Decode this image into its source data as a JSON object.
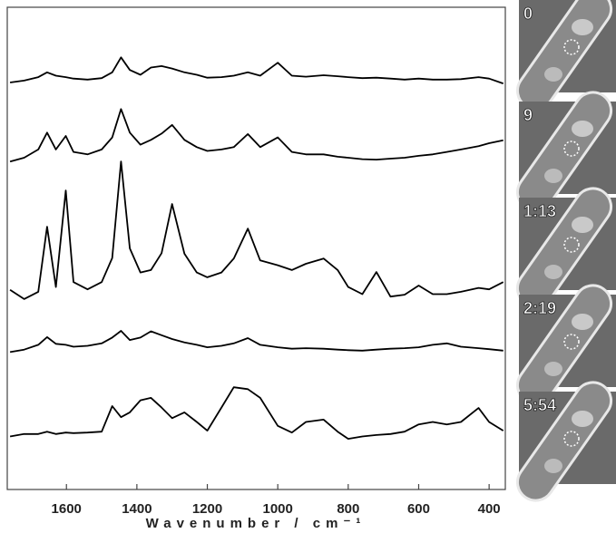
{
  "chart_data": {
    "type": "line",
    "x_label": "Wavenumber / cm⁻¹",
    "xlim": [
      1768,
      354
    ],
    "xticks": [
      1600,
      1400,
      1200,
      1000,
      800,
      600,
      400
    ],
    "ylim": [
      0,
      100
    ],
    "x": [
      1760,
      1720,
      1680,
      1655,
      1630,
      1602,
      1580,
      1540,
      1500,
      1470,
      1445,
      1420,
      1390,
      1360,
      1330,
      1300,
      1265,
      1230,
      1200,
      1160,
      1125,
      1085,
      1050,
      1000,
      960,
      920,
      870,
      830,
      800,
      760,
      720,
      680,
      640,
      600,
      560,
      520,
      480,
      430,
      400,
      360
    ],
    "series": [
      {
        "color": "#000000",
        "values": [
          84.4,
          84.8,
          85.5,
          86.5,
          85.8,
          85.5,
          85.2,
          85.0,
          85.3,
          86.5,
          89.6,
          87.0,
          86.0,
          87.5,
          87.8,
          87.3,
          86.5,
          86.0,
          85.4,
          85.5,
          85.8,
          86.5,
          85.8,
          88.5,
          85.8,
          85.6,
          85.9,
          85.7,
          85.5,
          85.3,
          85.4,
          85.2,
          85.0,
          85.2,
          85.0,
          85.0,
          85.1,
          85.5,
          85.2,
          84.2
        ]
      },
      {
        "color": "#000000",
        "values": [
          68.0,
          68.8,
          70.5,
          74.0,
          70.5,
          73.3,
          70.0,
          69.5,
          70.5,
          73.0,
          78.9,
          74.0,
          71.5,
          72.5,
          73.8,
          75.6,
          72.5,
          71.0,
          70.2,
          70.5,
          71.0,
          73.7,
          71.0,
          73.0,
          70.0,
          69.5,
          69.5,
          69.0,
          68.8,
          68.5,
          68.4,
          68.6,
          68.8,
          69.2,
          69.5,
          70.0,
          70.5,
          71.2,
          71.8,
          72.4
        ]
      },
      {
        "color": "#000000",
        "values": [
          41.4,
          39.5,
          41.0,
          54.5,
          42.0,
          62.0,
          43.0,
          41.5,
          43.0,
          48.0,
          68.0,
          50.0,
          45.0,
          45.5,
          49.0,
          59.2,
          48.9,
          45.0,
          44.0,
          45.0,
          47.9,
          54.1,
          47.5,
          46.5,
          45.5,
          46.8,
          47.9,
          45.5,
          42.0,
          40.5,
          45.1,
          40.0,
          40.4,
          42.3,
          40.5,
          40.5,
          41.0,
          41.8,
          41.5,
          43.0
        ]
      },
      {
        "color": "#000000",
        "values": [
          28.5,
          29.0,
          30.0,
          31.6,
          30.2,
          30.0,
          29.6,
          29.8,
          30.3,
          31.5,
          32.9,
          31.0,
          31.5,
          32.8,
          32.0,
          31.2,
          30.5,
          30.0,
          29.5,
          29.8,
          30.3,
          31.4,
          30.0,
          29.5,
          29.2,
          29.3,
          29.2,
          29.0,
          28.9,
          28.8,
          29.0,
          29.2,
          29.3,
          29.5,
          30.0,
          30.3,
          29.6,
          29.3,
          29.1,
          28.8
        ]
      },
      {
        "color": "#000000",
        "values": [
          11.0,
          11.5,
          11.5,
          12.0,
          11.5,
          11.8,
          11.7,
          11.8,
          12.0,
          17.3,
          15.0,
          16.0,
          18.5,
          19.0,
          17.0,
          14.8,
          16.0,
          14.0,
          12.2,
          17.0,
          21.2,
          20.8,
          19.0,
          13.2,
          11.8,
          14.0,
          14.5,
          12.0,
          10.5,
          11.0,
          11.3,
          11.5,
          12.0,
          13.5,
          14.0,
          13.5,
          14.0,
          16.9,
          14.0,
          12.2
        ]
      }
    ],
    "time_labels": [
      "0",
      "9",
      "1:13",
      "2:19",
      "5:54"
    ]
  }
}
